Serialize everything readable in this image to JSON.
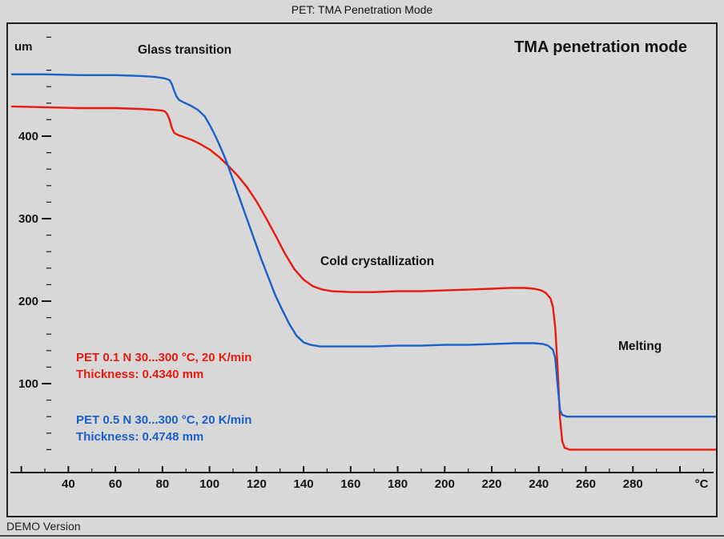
{
  "header": {
    "title": "PET: TMA Penetration Mode"
  },
  "footer": {
    "demo_label": "DEMO Version"
  },
  "chart_data": {
    "type": "line",
    "title": "TMA penetration mode",
    "x_unit": "°C",
    "y_unit": "um",
    "x_range": [
      15,
      315
    ],
    "y_range": [
      0,
      520
    ],
    "grid": false,
    "legend_position": "inside-left",
    "x_major_ticks": [
      20,
      40,
      60,
      80,
      100,
      120,
      140,
      160,
      180,
      200,
      220,
      240,
      260,
      280,
      300
    ],
    "x_labeled_ticks": [
      40,
      60,
      80,
      100,
      120,
      140,
      160,
      180,
      200,
      220,
      240,
      260,
      280
    ],
    "y_major_ticks": [
      100,
      200,
      300,
      400
    ],
    "annotations": [
      {
        "text": "Glass transition"
      },
      {
        "text": "Cold crystallization"
      },
      {
        "text": "Melting"
      }
    ],
    "series": [
      {
        "name": "PET 0.1 N 30...300 °C, 20 K/min",
        "thickness_label": "Thickness: 0.4340 mm",
        "color": "#e8190f",
        "points": [
          [
            16,
            436
          ],
          [
            30,
            435
          ],
          [
            45,
            434
          ],
          [
            60,
            434
          ],
          [
            70,
            433
          ],
          [
            76,
            432
          ],
          [
            80,
            431
          ],
          [
            81,
            430
          ],
          [
            82,
            427
          ],
          [
            83,
            420
          ],
          [
            84,
            410
          ],
          [
            85,
            404
          ],
          [
            87,
            401
          ],
          [
            89,
            399
          ],
          [
            92,
            396
          ],
          [
            95,
            392
          ],
          [
            100,
            384
          ],
          [
            104,
            375
          ],
          [
            108,
            364
          ],
          [
            112,
            352
          ],
          [
            116,
            338
          ],
          [
            120,
            321
          ],
          [
            124,
            301
          ],
          [
            128,
            280
          ],
          [
            132,
            258
          ],
          [
            136,
            239
          ],
          [
            140,
            226
          ],
          [
            144,
            218
          ],
          [
            148,
            214
          ],
          [
            152,
            212
          ],
          [
            160,
            211
          ],
          [
            170,
            211
          ],
          [
            180,
            212
          ],
          [
            190,
            212
          ],
          [
            200,
            213
          ],
          [
            210,
            214
          ],
          [
            220,
            215
          ],
          [
            228,
            216
          ],
          [
            234,
            216
          ],
          [
            238,
            215
          ],
          [
            241,
            213
          ],
          [
            243,
            210
          ],
          [
            245,
            203
          ],
          [
            246,
            193
          ],
          [
            247,
            168
          ],
          [
            248,
            118
          ],
          [
            249,
            58
          ],
          [
            250,
            30
          ],
          [
            251,
            22
          ],
          [
            253,
            20
          ],
          [
            260,
            20
          ],
          [
            270,
            20
          ],
          [
            282,
            20
          ],
          [
            296,
            20
          ],
          [
            315,
            20
          ]
        ]
      },
      {
        "name": "PET 0.5 N 30...300 °C, 20 K/min",
        "thickness_label": "Thickness: 0.4748 mm",
        "color": "#1a5fc8",
        "points": [
          [
            16,
            475
          ],
          [
            30,
            475
          ],
          [
            45,
            474
          ],
          [
            60,
            474
          ],
          [
            70,
            473
          ],
          [
            76,
            472
          ],
          [
            79,
            471
          ],
          [
            81,
            470
          ],
          [
            83,
            468
          ],
          [
            84,
            463
          ],
          [
            85,
            455
          ],
          [
            86,
            448
          ],
          [
            87,
            444
          ],
          [
            89,
            441
          ],
          [
            92,
            437
          ],
          [
            95,
            432
          ],
          [
            98,
            424
          ],
          [
            100,
            414
          ],
          [
            102,
            403
          ],
          [
            104,
            391
          ],
          [
            107,
            371
          ],
          [
            110,
            347
          ],
          [
            113,
            323
          ],
          [
            116,
            299
          ],
          [
            119,
            275
          ],
          [
            122,
            251
          ],
          [
            125,
            229
          ],
          [
            128,
            207
          ],
          [
            131,
            189
          ],
          [
            134,
            172
          ],
          [
            137,
            158
          ],
          [
            140,
            150
          ],
          [
            143,
            147
          ],
          [
            147,
            145
          ],
          [
            152,
            145
          ],
          [
            160,
            145
          ],
          [
            170,
            145
          ],
          [
            180,
            146
          ],
          [
            190,
            146
          ],
          [
            200,
            147
          ],
          [
            210,
            147
          ],
          [
            220,
            148
          ],
          [
            230,
            149
          ],
          [
            238,
            149
          ],
          [
            242,
            148
          ],
          [
            244,
            146
          ],
          [
            246,
            141
          ],
          [
            247,
            131
          ],
          [
            248,
            98
          ],
          [
            249,
            68
          ],
          [
            250,
            62
          ],
          [
            252,
            60
          ],
          [
            260,
            60
          ],
          [
            270,
            60
          ],
          [
            282,
            60
          ],
          [
            296,
            60
          ],
          [
            315,
            60
          ]
        ]
      }
    ]
  }
}
